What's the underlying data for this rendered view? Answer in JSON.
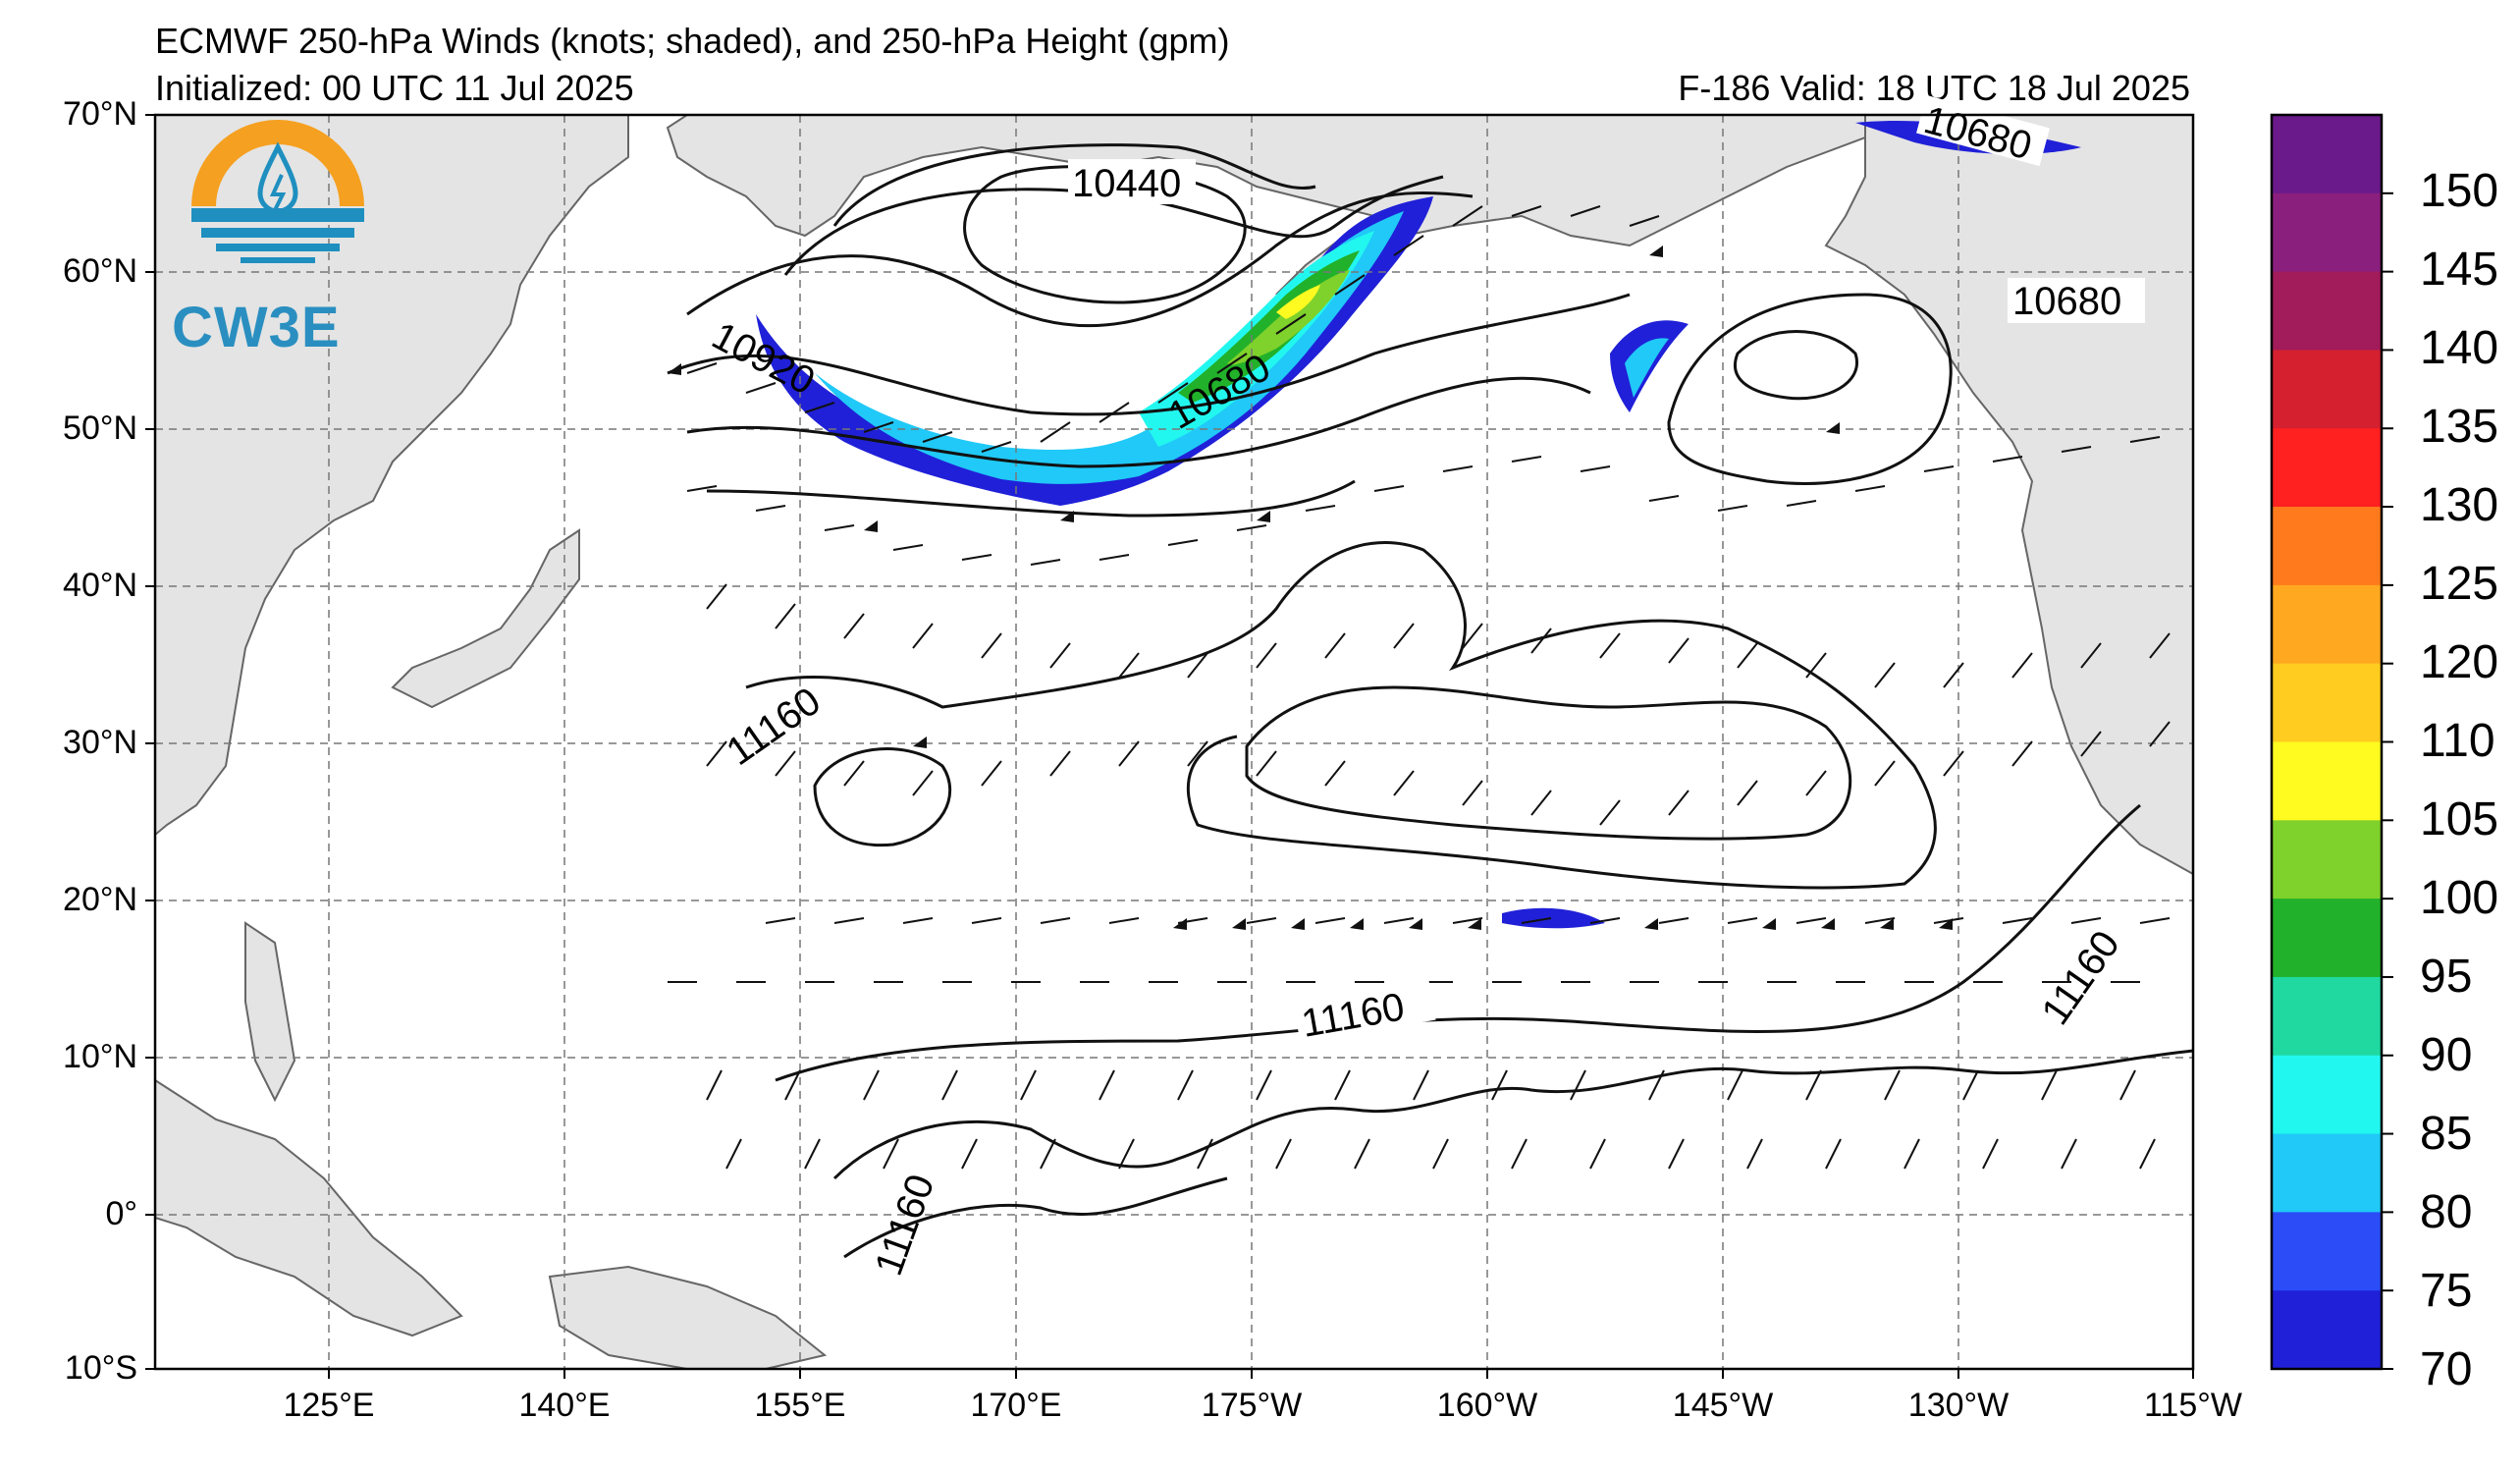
{
  "header": {
    "title": "ECMWF 250-hPa Winds (knots; shaded), and 250-hPa Height (gpm)",
    "initialized": "Initialized: 00 UTC 11 Jul 2025",
    "valid": "F-186  Valid: 18 UTC 18 Jul 2025"
  },
  "logo": {
    "text": "CW3E"
  },
  "axes": {
    "lat_labels": [
      "70°N",
      "60°N",
      "50°N",
      "40°N",
      "30°N",
      "20°N",
      "10°N",
      "0°",
      "10°S"
    ],
    "lon_labels": [
      "125°E",
      "140°E",
      "155°E",
      "170°E",
      "175°W",
      "160°W",
      "145°W",
      "130°W",
      "115°W"
    ]
  },
  "contour_labels": [
    "10440",
    "10680",
    "10920",
    "10680",
    "10680",
    "11160",
    "11160",
    "11160",
    "11160"
  ],
  "colorbar": {
    "ticks": [
      "150",
      "145",
      "140",
      "135",
      "130",
      "125",
      "120",
      "110",
      "105",
      "100",
      "95",
      "90",
      "85",
      "80",
      "75",
      "70"
    ],
    "colors": [
      "#6a1a8a",
      "#8b1f7e",
      "#a21b5a",
      "#d4202f",
      "#ff2020",
      "#ff7a1c",
      "#ffa820",
      "#ffcc1f",
      "#fffa20",
      "#7fd12b",
      "#22b12a",
      "#1fd9a0",
      "#22f7ef",
      "#20c9f7",
      "#2b4cf7",
      "#2020d8"
    ]
  },
  "shading_colors": {
    "land": "#e4e4e4",
    "jet_70": "#2020d8",
    "jet_80": "#20c9f7",
    "jet_85": "#22f7ef",
    "jet_95": "#22b12a",
    "jet_100": "#7fd12b",
    "jet_105": "#fffa20"
  }
}
